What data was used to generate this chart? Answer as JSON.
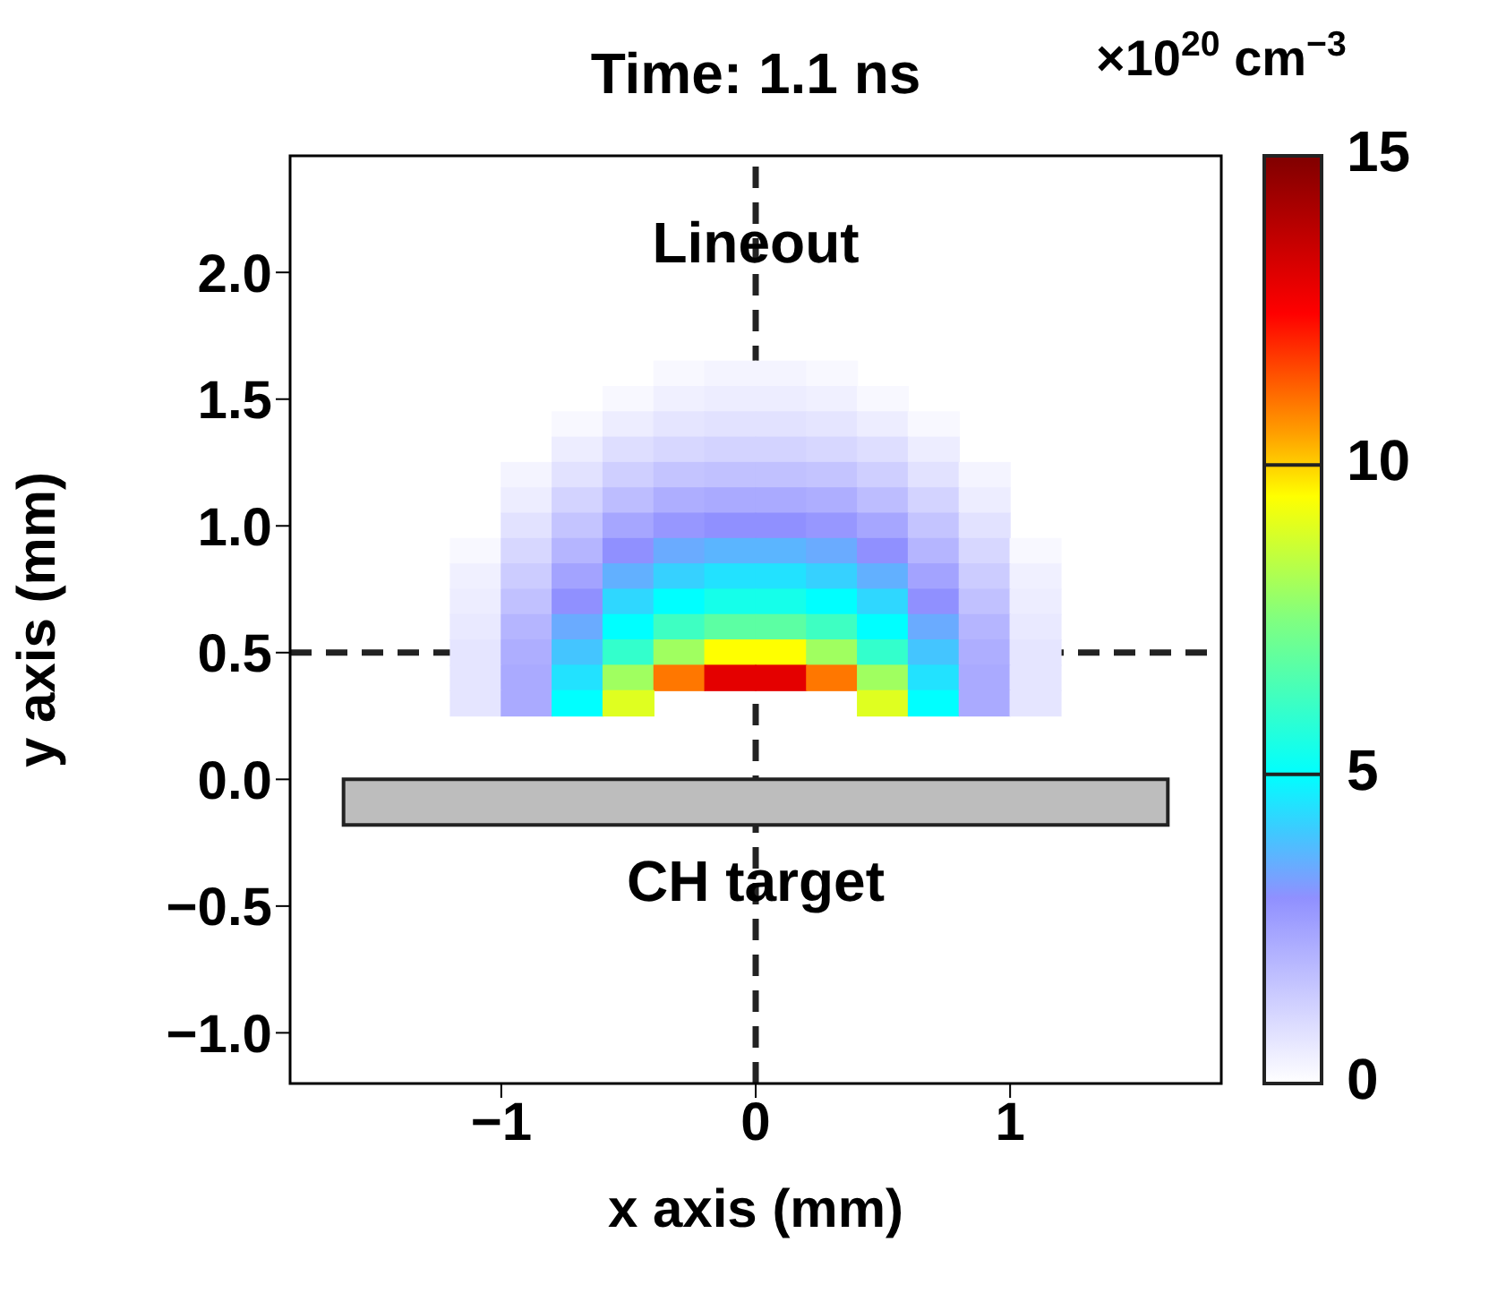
{
  "chart_data": {
    "type": "scatter",
    "title": "Time: 1.1 ns",
    "xlabel": "x axis (mm)",
    "ylabel": "y axis (mm)",
    "clabel": "×10$^{20}$ cm$^{−3}$",
    "xlim": [
      -1.83,
      1.83
    ],
    "ylim": [
      -1.2,
      2.46
    ],
    "xticks": [
      {
        "value": -1,
        "label": "−1"
      },
      0,
      1
    ],
    "yticks": [
      {
        "value": -1,
        "label": "−1.0"
      },
      {
        "value": -0.5,
        "label": "−0.5"
      },
      {
        "value": 0,
        "label": "0.0"
      },
      0.5,
      {
        "value": 1,
        "label": "1.0"
      },
      1.5,
      {
        "value": 2,
        "label": "2.0"
      }
    ],
    "clim": [
      0,
      15
    ],
    "cticks": [
      0,
      5,
      10,
      15
    ],
    "grid": false,
    "legend": false,
    "marker": "square",
    "ref_lines": [
      {
        "axis": "x",
        "value": 0,
        "line_style": "dashed",
        "color": "#222222"
      },
      {
        "axis": "y",
        "value": 0.5,
        "line_style": "dashed",
        "color": "#222222"
      }
    ],
    "annotations": [
      {
        "text": "Lineout",
        "x": 0,
        "y": 2.1
      },
      {
        "text": "CH target",
        "x": 0,
        "y": -0.42
      }
    ],
    "series": [
      {
        "x": [
          -0.3,
          -0.1,
          0.1,
          0.3,
          -0.5,
          -0.3,
          -0.1,
          0.1,
          0.3,
          0.5,
          -0.7,
          -0.5,
          -0.3,
          -0.1,
          0.1,
          0.3,
          0.5,
          0.7,
          -0.7,
          -0.5,
          -0.3,
          -0.1,
          0.1,
          0.3,
          0.5,
          0.7,
          -0.9,
          -0.7,
          -0.5,
          -0.3,
          -0.1,
          0.1,
          0.3,
          0.5,
          0.7,
          0.9,
          -0.9,
          -0.7,
          -0.5,
          -0.3,
          -0.1,
          0.1,
          0.3,
          0.5,
          0.7,
          0.9,
          -0.9,
          -0.7,
          -0.5,
          -0.3,
          -0.1,
          0.1,
          0.3,
          0.5,
          0.7,
          0.9,
          -1.1,
          -0.9,
          -0.7,
          -0.5,
          -0.3,
          -0.1,
          0.1,
          0.3,
          0.5,
          0.7,
          0.9,
          1.1,
          -1.1,
          -0.9,
          -0.7,
          -0.5,
          -0.3,
          -0.1,
          0.1,
          0.3,
          0.5,
          0.7,
          0.9,
          1.1,
          -1.1,
          -0.9,
          -0.7,
          -0.5,
          -0.3,
          -0.1,
          0.1,
          0.3,
          0.5,
          0.7,
          0.9,
          1.1,
          -1.1,
          -0.9,
          -0.7,
          -0.5,
          -0.3,
          -0.1,
          0.1,
          0.3,
          0.5,
          0.7,
          0.9,
          1.1,
          -1.1,
          -0.9,
          -0.7,
          -0.5,
          -0.3,
          -0.1,
          0.1,
          0.3,
          0.5,
          0.7,
          0.9,
          1.1,
          -1.1,
          -0.9,
          -0.7,
          -0.5,
          -0.3,
          -0.1,
          0.1,
          0.3,
          0.5,
          0.7,
          0.9,
          1.1,
          -1.1,
          -0.9,
          -0.7,
          -0.5,
          0.5,
          0.7,
          0.9,
          1.1
        ],
        "values": [
          1.6,
          1.6,
          1.6,
          1.6,
          1.5,
          1.5,
          1.5,
          1.5,
          1.5,
          1.5,
          1.4,
          1.4,
          1.4,
          1.4,
          1.4,
          1.4,
          1.4,
          1.4,
          1.3,
          1.3,
          1.3,
          1.3,
          1.3,
          1.3,
          1.3,
          1.3,
          1.2,
          1.2,
          1.2,
          1.2,
          1.2,
          1.2,
          1.2,
          1.2,
          1.2,
          1.2,
          1.1,
          1.1,
          1.1,
          1.1,
          1.1,
          1.1,
          1.1,
          1.1,
          1.1,
          1.1,
          1.0,
          1.0,
          1.0,
          1.0,
          1.0,
          1.0,
          1.0,
          1.0,
          1.0,
          1.0,
          0.9,
          0.9,
          0.9,
          0.9,
          0.9,
          0.9,
          0.9,
          0.9,
          0.9,
          0.9,
          0.9,
          0.9,
          0.8,
          0.8,
          0.8,
          0.8,
          0.8,
          0.8,
          0.8,
          0.8,
          0.8,
          0.8,
          0.8,
          0.8,
          0.7,
          0.7,
          0.7,
          0.7,
          0.7,
          0.7,
          0.7,
          0.7,
          0.7,
          0.7,
          0.7,
          0.7,
          0.6,
          0.6,
          0.6,
          0.6,
          0.6,
          0.6,
          0.6,
          0.6,
          0.6,
          0.6,
          0.6,
          0.6,
          0.5,
          0.5,
          0.5,
          0.5,
          0.5,
          0.5,
          0.5,
          0.5,
          0.5,
          0.5,
          0.5,
          0.5,
          0.4,
          0.4,
          0.4,
          0.4,
          0.4,
          0.4,
          0.4,
          0.4,
          0.4,
          0.4,
          0.4,
          0.4,
          0.3,
          0.3,
          0.3,
          0.3,
          0.3,
          0.3,
          0.3,
          0.3
        ],
        "cvalues": [
          0.2,
          0.3,
          0.3,
          0.2,
          0.2,
          0.4,
          0.5,
          0.5,
          0.4,
          0.2,
          0.2,
          0.5,
          0.7,
          0.8,
          0.8,
          0.7,
          0.5,
          0.2,
          0.5,
          0.9,
          1.1,
          1.2,
          1.2,
          1.1,
          0.9,
          0.5,
          0.3,
          0.8,
          1.3,
          1.6,
          1.7,
          1.7,
          1.6,
          1.3,
          0.8,
          0.3,
          0.5,
          1.2,
          1.8,
          2.2,
          2.3,
          2.3,
          2.2,
          1.8,
          1.2,
          0.5,
          0.8,
          1.6,
          2.4,
          2.8,
          3,
          3,
          2.8,
          2.4,
          1.6,
          0.8,
          0.2,
          1.1,
          2,
          3,
          3.5,
          3.7,
          3.7,
          3.5,
          3,
          2,
          1.1,
          0.2,
          0.4,
          1.4,
          2.5,
          3.6,
          4.2,
          4.5,
          4.5,
          4.2,
          3.6,
          2.5,
          1.4,
          0.4,
          0.5,
          1.7,
          3,
          4.3,
          5,
          5.4,
          5.4,
          5,
          4.3,
          3,
          1.7,
          0.5,
          0.6,
          2,
          3.5,
          5,
          6.2,
          6.8,
          6.8,
          6.2,
          5,
          3.5,
          2,
          0.6,
          0.7,
          2.2,
          4,
          6,
          8,
          9.5,
          9.5,
          8,
          6,
          4,
          2.2,
          0.7,
          0.7,
          2.3,
          4.5,
          8,
          11,
          13,
          13,
          11,
          8,
          4.5,
          2.3,
          0.7,
          0.7,
          2.3,
          5,
          9,
          9,
          5,
          2.3,
          0.7
        ]
      }
    ]
  }
}
